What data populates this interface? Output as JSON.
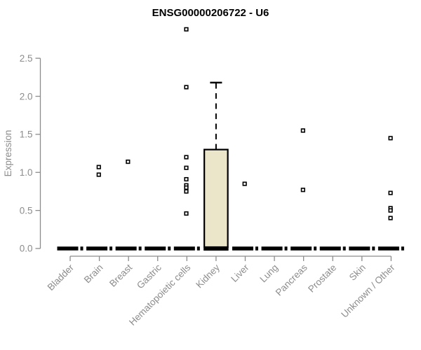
{
  "title": "ENSG00000206722 - U6",
  "chart_data": {
    "type": "boxplot",
    "title": "ENSG00000206722 - U6",
    "xlabel": "",
    "ylabel": "Expression",
    "ylim": [
      0.0,
      2.5
    ],
    "yticks": [
      "0.0",
      "0.5",
      "1.0",
      "1.5",
      "2.0",
      "2.5"
    ],
    "grid": false,
    "legend": false,
    "categories": [
      "Bladder",
      "Brain",
      "Breast",
      "Gastric",
      "Hematopoietic cells",
      "Kidney",
      "Liver",
      "Lung",
      "Pancreas",
      "Prostate",
      "Skin",
      "Unknown / Other"
    ],
    "boxes": [
      {
        "category": "Bladder",
        "median": 0,
        "q1": 0,
        "q3": 0,
        "whisker_low": 0,
        "whisker_high": 0,
        "outliers": []
      },
      {
        "category": "Brain",
        "median": 0,
        "q1": 0,
        "q3": 0,
        "whisker_low": 0,
        "whisker_high": 0,
        "outliers": [
          1.07,
          0.97
        ]
      },
      {
        "category": "Breast",
        "median": 0,
        "q1": 0,
        "q3": 0,
        "whisker_low": 0,
        "whisker_high": 0,
        "outliers": [
          1.14
        ]
      },
      {
        "category": "Gastric",
        "median": 0,
        "q1": 0,
        "q3": 0,
        "whisker_low": 0,
        "whisker_high": 0,
        "outliers": []
      },
      {
        "category": "Hematopoietic cells",
        "median": 0,
        "q1": 0,
        "q3": 0,
        "whisker_low": 0,
        "whisker_high": 0,
        "outliers": [
          2.88,
          2.12,
          1.2,
          1.06,
          0.91,
          0.83,
          0.8,
          0.75,
          0.46
        ]
      },
      {
        "category": "Kidney",
        "median": 0,
        "q1": 0,
        "q3": 1.3,
        "whisker_low": 0,
        "whisker_high": 2.18,
        "outliers": []
      },
      {
        "category": "Liver",
        "median": 0,
        "q1": 0,
        "q3": 0,
        "whisker_low": 0,
        "whisker_high": 0,
        "outliers": [
          0.85
        ]
      },
      {
        "category": "Lung",
        "median": 0,
        "q1": 0,
        "q3": 0,
        "whisker_low": 0,
        "whisker_high": 0,
        "outliers": []
      },
      {
        "category": "Pancreas",
        "median": 0,
        "q1": 0,
        "q3": 0,
        "whisker_low": 0,
        "whisker_high": 0,
        "outliers": [
          1.55,
          0.77
        ]
      },
      {
        "category": "Prostate",
        "median": 0,
        "q1": 0,
        "q3": 0,
        "whisker_low": 0,
        "whisker_high": 0,
        "outliers": []
      },
      {
        "category": "Skin",
        "median": 0,
        "q1": 0,
        "q3": 0,
        "whisker_low": 0,
        "whisker_high": 0,
        "outliers": []
      },
      {
        "category": "Unknown / Other",
        "median": 0,
        "q1": 0,
        "q3": 0,
        "whisker_low": 0,
        "whisker_high": 0,
        "outliers": [
          1.45,
          0.73,
          0.53,
          0.5,
          0.4
        ]
      }
    ],
    "colors": {
      "box_fill": "#ebe6ca",
      "box_stroke": "#000000",
      "median_line": "#000000",
      "whisker": "#000000",
      "outlier_stroke": "#000000",
      "outlier_fill": "#ffffff",
      "axis": "#8c8c8c",
      "tick_label": "#8c8c8c",
      "title": "#000000",
      "background": "#ffffff"
    }
  }
}
